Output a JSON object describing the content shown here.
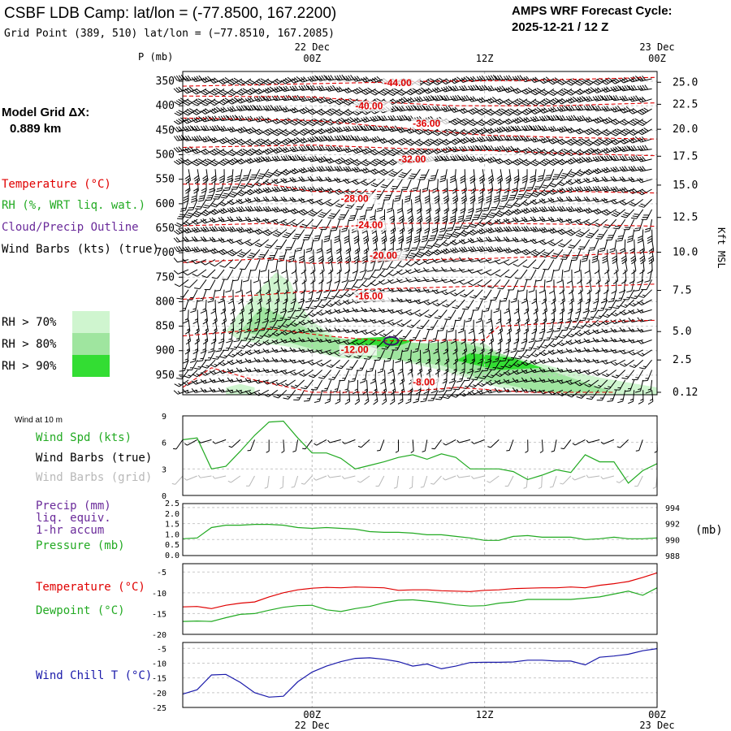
{
  "header": {
    "title": "CSBF LDB Camp:  lat/lon = (-77.8500, 167.2200)",
    "subtitle": "Grid Point (389, 510) lat/lon = (−77.8510, 167.2085)",
    "cycle_title": "AMPS WRF Forecast Cycle:",
    "cycle_value": "2025-12-21 / 12  Z"
  },
  "left_panel": {
    "model_grid_title": "Model Grid ΔX:",
    "model_grid_value": "0.889 km",
    "legend": [
      {
        "label": "Temperature (°C)",
        "color": "#e00000"
      },
      {
        "label": "RH (%, WRT liq. wat.)",
        "color": "#22aa22"
      },
      {
        "label": "Cloud/Precip Outline",
        "color": "#6a2a9a"
      },
      {
        "label": "Wind Barbs (kts) (true)",
        "color": "#000000"
      }
    ],
    "rh_legend": [
      {
        "label": "RH > 70%",
        "color": "#cff5cf"
      },
      {
        "label": "RH > 80%",
        "color": "#9fe59f"
      },
      {
        "label": "RH > 90%",
        "color": "#33dd33"
      }
    ]
  },
  "time_axis": {
    "top_labels": [
      {
        "day": "22 Dec",
        "hour": "00Z",
        "t": 12
      },
      {
        "day": "",
        "hour": "12Z",
        "t": 24
      },
      {
        "day": "23 Dec",
        "hour": "00Z",
        "t": 36
      }
    ],
    "bottom_labels": [
      {
        "hour": "00Z",
        "day": "22 Dec",
        "t": 12
      },
      {
        "hour": "12Z",
        "day": "",
        "t": 24
      },
      {
        "hour": "00Z",
        "day": "23 Dec",
        "t": 36
      }
    ]
  },
  "chart_data": [
    {
      "type": "heatmap",
      "name": "Vertical cross-section",
      "yaxis_title": "P (mb)",
      "y_ticks": [
        350,
        400,
        450,
        500,
        550,
        600,
        650,
        700,
        750,
        800,
        850,
        900,
        950
      ],
      "ylim": [
        330,
        990
      ],
      "right_axis_label": "Kft MSL",
      "right_ticks": [
        "25.0",
        "22.5",
        "20.0",
        "17.5",
        "15.0",
        "12.5",
        "10.0",
        "7.5",
        "5.0",
        "2.5",
        "0.12"
      ],
      "right_tick_pressures": [
        352,
        397,
        448,
        503,
        562,
        628,
        699,
        777,
        861,
        919,
        985
      ],
      "xlim": [
        3,
        36
      ],
      "temperature_contours": [
        {
          "label": "-44.00",
          "points": [
            [
              3,
              360
            ],
            [
              12,
              355
            ],
            [
              20,
              350
            ],
            [
              27,
              348
            ],
            [
              32,
              345
            ],
            [
              36,
              342
            ]
          ],
          "label_at": [
            17,
            360
          ]
        },
        {
          "label": "-40.00",
          "points": [
            [
              3,
              380
            ],
            [
              12,
              382
            ],
            [
              17,
              393
            ],
            [
              22,
              400
            ],
            [
              29,
              400
            ],
            [
              36,
              394
            ]
          ],
          "label_at": [
            15,
            407
          ]
        },
        {
          "label": "-36.00",
          "points": [
            [
              3,
              425
            ],
            [
              12,
              430
            ],
            [
              18,
              445
            ],
            [
              24,
              460
            ],
            [
              30,
              465
            ],
            [
              36,
              468
            ]
          ],
          "label_at": [
            19,
            443
          ]
        },
        {
          "label": "-32.00",
          "points": [
            [
              3,
              485
            ],
            [
              12,
              480
            ],
            [
              19,
              488
            ],
            [
              25,
              492
            ],
            [
              30,
              498
            ],
            [
              36,
              502
            ]
          ],
          "label_at": [
            18,
            516
          ]
        },
        {
          "label": "-28.00",
          "points": [
            [
              3,
              560
            ],
            [
              9,
              560
            ],
            [
              12,
              575
            ],
            [
              18,
              575
            ],
            [
              24,
              572
            ],
            [
              30,
              575
            ],
            [
              36,
              578
            ]
          ],
          "label_at": [
            14,
            596
          ]
        },
        {
          "label": "-24.00",
          "points": [
            [
              3,
              645
            ],
            [
              9,
              640
            ],
            [
              12,
              650
            ],
            [
              18,
              640
            ],
            [
              24,
              640
            ],
            [
              30,
              642
            ],
            [
              36,
              646
            ]
          ],
          "label_at": [
            15,
            650
          ]
        },
        {
          "label": "-20.00",
          "points": [
            [
              3,
              720
            ],
            [
              9,
              712
            ],
            [
              12,
              722
            ],
            [
              18,
              715
            ],
            [
              24,
              712
            ],
            [
              30,
              706
            ],
            [
              36,
              698
            ]
          ],
          "label_at": [
            16,
            712
          ]
        },
        {
          "label": "-16.00",
          "points": [
            [
              3,
              795
            ],
            [
              9,
              785
            ],
            [
              12,
              778
            ],
            [
              18,
              773
            ],
            [
              24,
              768
            ],
            [
              30,
              770
            ],
            [
              36,
              764
            ]
          ],
          "label_at": [
            15,
            795
          ]
        },
        {
          "label": "-12.00",
          "points": [
            [
              3,
              870
            ],
            [
              9,
              855
            ],
            [
              13,
              870
            ],
            [
              17,
              880
            ],
            [
              24,
              878
            ],
            [
              25,
              850
            ],
            [
              30,
              842
            ],
            [
              36,
              838
            ]
          ],
          "label_at": [
            14,
            905
          ]
        },
        {
          "label": "-8.00",
          "points": [
            [
              3,
              975
            ],
            [
              5,
              935
            ],
            [
              8,
              960
            ],
            [
              12,
              985
            ],
            [
              18,
              985
            ],
            [
              22,
              975
            ],
            [
              27,
              985
            ],
            [
              33,
              985
            ]
          ],
          "label_at": [
            19,
            971
          ]
        }
      ],
      "rh_regions": [
        {
          "level": 70,
          "points": [
            [
              6,
              860
            ],
            [
              7,
              820
            ],
            [
              8.5,
              770
            ],
            [
              9.5,
              740
            ],
            [
              10.5,
              760
            ],
            [
              11,
              800
            ],
            [
              12,
              840
            ],
            [
              14,
              880
            ],
            [
              17,
              888
            ],
            [
              20,
              890
            ],
            [
              22,
              880
            ],
            [
              24,
              885
            ],
            [
              25,
              905
            ],
            [
              29,
              935
            ],
            [
              32,
              955
            ],
            [
              36,
              975
            ],
            [
              36,
              990
            ],
            [
              30,
              990
            ],
            [
              25,
              975
            ],
            [
              21,
              940
            ],
            [
              18,
              920
            ],
            [
              14,
              915
            ],
            [
              10,
              890
            ],
            [
              7,
              880
            ]
          ]
        },
        {
          "level": 70,
          "points": [
            [
              6,
              975
            ],
            [
              7,
              968
            ],
            [
              8,
              975
            ],
            [
              8,
              990
            ],
            [
              6,
              990
            ]
          ]
        },
        {
          "level": 80,
          "points": [
            [
              7,
              860
            ],
            [
              8.5,
              810
            ],
            [
              10,
              830
            ],
            [
              12,
              860
            ],
            [
              14,
              875
            ],
            [
              17,
              880
            ],
            [
              20,
              885
            ],
            [
              22,
              880
            ],
            [
              24,
              895
            ],
            [
              27,
              925
            ],
            [
              30,
              955
            ],
            [
              33,
              985
            ],
            [
              28,
              985
            ],
            [
              24,
              960
            ],
            [
              21,
              930
            ],
            [
              17,
              915
            ],
            [
              13,
              905
            ],
            [
              10,
              880
            ]
          ]
        },
        {
          "level": 90,
          "points": [
            [
              15,
              875
            ],
            [
              17,
              872
            ],
            [
              19,
              880
            ],
            [
              18,
              890
            ],
            [
              16,
              893
            ],
            [
              14.5,
              888
            ]
          ]
        },
        {
          "level": 90,
          "points": [
            [
              23,
              905
            ],
            [
              26,
              915
            ],
            [
              28,
              935
            ],
            [
              25,
              940
            ],
            [
              22,
              920
            ]
          ]
        }
      ],
      "cloud_outline": {
        "center": [
          17.5,
          880
        ],
        "rx": 0.5,
        "ry": 8
      }
    },
    {
      "type": "line",
      "name": "Wind at 10 m",
      "panel_title": "Wind at 10 m",
      "labels": [
        {
          "text": "Wind Spd (kts)",
          "color": "#22aa22"
        },
        {
          "text": "Wind Barbs (true)",
          "color": "#000000"
        },
        {
          "text": "Wind Barbs (grid)",
          "color": "#b8b8b8"
        }
      ],
      "ylim": [
        0,
        9
      ],
      "y_ticks": [
        0,
        3,
        6,
        9
      ],
      "x": [
        3,
        4,
        5,
        6,
        7,
        8,
        9,
        10,
        11,
        12,
        13,
        14,
        15,
        16,
        17,
        18,
        19,
        20,
        21,
        22,
        23,
        24,
        25,
        26,
        27,
        28,
        29,
        30,
        31,
        32,
        33,
        34,
        35,
        36
      ],
      "values": [
        6.3,
        6.5,
        3.0,
        3.3,
        5.0,
        6.8,
        8.3,
        8.4,
        6.5,
        4.8,
        4.8,
        4.2,
        3.0,
        3.4,
        3.8,
        4.3,
        4.6,
        4.1,
        4.7,
        4.3,
        3.0,
        3.0,
        3.0,
        2.7,
        1.8,
        2.3,
        2.9,
        2.6,
        4.6,
        3.8,
        3.8,
        1.4,
        2.8,
        3.6
      ]
    },
    {
      "type": "line",
      "name": "Precip / Pressure",
      "labels": [
        {
          "text": "Precip (mm)",
          "color": "#6a2a9a"
        },
        {
          "text": "liq. equiv.",
          "color": "#6a2a9a"
        },
        {
          "text": "1-hr accum",
          "color": "#6a2a9a"
        },
        {
          "text": "Pressure (mb)",
          "color": "#22aa22"
        }
      ],
      "ylabel_right": "(mb)",
      "left_ticks": [
        "0.0",
        "0.5",
        "1.0",
        "1.5",
        "2.0",
        "2.5"
      ],
      "right_ticks": [
        "988",
        "990",
        "992",
        "994"
      ],
      "ylim": [
        988,
        994.5
      ],
      "x": [
        3,
        4,
        5,
        6,
        7,
        8,
        9,
        10,
        11,
        12,
        13,
        14,
        15,
        16,
        17,
        18,
        19,
        20,
        21,
        22,
        23,
        24,
        25,
        26,
        27,
        28,
        29,
        30,
        31,
        32,
        33,
        34,
        35,
        36
      ],
      "values": [
        990.1,
        990.2,
        991.5,
        991.8,
        991.8,
        991.9,
        991.9,
        991.8,
        991.5,
        991.4,
        991.5,
        991.4,
        991.3,
        991.0,
        990.9,
        990.9,
        990.8,
        990.6,
        990.6,
        990.4,
        990.2,
        989.9,
        989.9,
        990.4,
        990.5,
        990.3,
        990.3,
        990.3,
        990.0,
        990.1,
        990.3,
        990.1,
        990.1,
        990.2
      ],
      "precip": []
    },
    {
      "type": "line",
      "name": "Temperature / Dewpoint",
      "labels": [
        {
          "text": "Temperature (°C)",
          "color": "#e00000"
        },
        {
          "text": "Dewpoint (°C)",
          "color": "#22aa22"
        }
      ],
      "ylim": [
        -20,
        -3
      ],
      "y_ticks": [
        -20,
        -15,
        -10,
        -5
      ],
      "x": [
        3,
        4,
        5,
        6,
        7,
        8,
        9,
        10,
        11,
        12,
        13,
        14,
        15,
        16,
        17,
        18,
        19,
        20,
        21,
        22,
        23,
        24,
        25,
        26,
        27,
        28,
        29,
        30,
        31,
        32,
        33,
        34,
        35,
        36
      ],
      "series": [
        {
          "name": "Temperature",
          "color": "#e00000",
          "values": [
            -13.4,
            -13.3,
            -13.8,
            -13.0,
            -12.5,
            -12.2,
            -11.0,
            -10.0,
            -9.3,
            -8.9,
            -8.7,
            -8.8,
            -8.6,
            -8.7,
            -8.8,
            -9.4,
            -9.3,
            -9.3,
            -9.5,
            -9.6,
            -9.7,
            -9.4,
            -9.3,
            -9.0,
            -8.9,
            -8.8,
            -8.8,
            -8.6,
            -8.8,
            -8.2,
            -7.8,
            -7.3,
            -6.3,
            -5.2
          ]
        },
        {
          "name": "Dewpoint",
          "color": "#22aa22",
          "values": [
            -16.9,
            -16.8,
            -16.9,
            -16.0,
            -15.2,
            -15.0,
            -14.2,
            -13.5,
            -13.1,
            -13.0,
            -14.1,
            -14.5,
            -13.8,
            -13.3,
            -12.4,
            -11.8,
            -11.7,
            -12.0,
            -12.4,
            -12.9,
            -13.2,
            -13.1,
            -12.5,
            -12.2,
            -11.6,
            -11.6,
            -11.6,
            -11.6,
            -11.3,
            -11.0,
            -10.3,
            -9.6,
            -10.6,
            -8.8
          ]
        }
      ]
    },
    {
      "type": "line",
      "name": "Wind Chill",
      "labels": [
        {
          "text": "Wind Chill T (°C)",
          "color": "#1a1aaa"
        }
      ],
      "ylim": [
        -25,
        -3
      ],
      "y_ticks": [
        -25,
        -20,
        -15,
        -10,
        -5
      ],
      "x": [
        3,
        4,
        5,
        6,
        7,
        8,
        9,
        10,
        11,
        12,
        13,
        14,
        15,
        16,
        17,
        18,
        19,
        20,
        21,
        22,
        23,
        24,
        25,
        26,
        27,
        28,
        29,
        30,
        31,
        32,
        33,
        34,
        35,
        36
      ],
      "series": [
        {
          "name": "Wind Chill",
          "color": "#1a1aaa",
          "values": [
            -20.5,
            -19.0,
            -14.0,
            -13.8,
            -16.5,
            -20.0,
            -21.5,
            -21.2,
            -16.3,
            -13.0,
            -11.0,
            -9.5,
            -8.4,
            -8.2,
            -8.7,
            -9.5,
            -11.0,
            -10.3,
            -11.9,
            -11.0,
            -9.8,
            -9.7,
            -9.7,
            -9.6,
            -9.0,
            -9.0,
            -9.3,
            -9.3,
            -10.6,
            -8.0,
            -7.6,
            -7.0,
            -5.8,
            -5.1
          ]
        }
      ]
    }
  ]
}
